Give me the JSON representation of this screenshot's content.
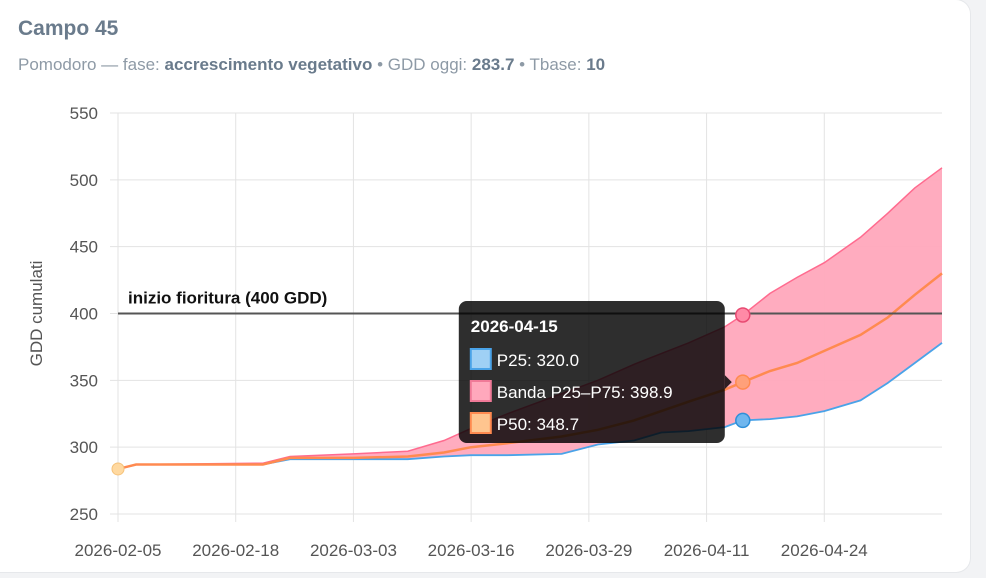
{
  "card": {
    "title": "Campo 45",
    "crop": "Pomodoro",
    "sep": " — ",
    "phase_label": "fase: ",
    "phase_value": "accrescimento vegetativo",
    "dot1": " • ",
    "gdd_label": "GDD oggi: ",
    "gdd_value": "283.7",
    "dot2": " • ",
    "tbase_label": "Tbase: ",
    "tbase_value": "10"
  },
  "colors": {
    "p25": "#4aa3e8",
    "p50": "#ff8a50",
    "band_fill": "#ffa8bc",
    "band_line": "#ff6b8f",
    "today_dot": "#ffd9a0",
    "threshold": "#555555"
  },
  "chart_data": {
    "type": "line",
    "ylabel": "GDD cumulati",
    "ylim": [
      250,
      550
    ],
    "yticks": [
      250,
      300,
      350,
      400,
      450,
      500,
      550
    ],
    "xlim": [
      "2026-02-05",
      "2026-05-07"
    ],
    "xticks": [
      "2026-02-05",
      "2026-02-18",
      "2026-03-03",
      "2026-03-16",
      "2026-03-29",
      "2026-04-11",
      "2026-04-24"
    ],
    "grid": true,
    "legend": "none",
    "today": {
      "x": "2026-02-05",
      "y": 283.7
    },
    "annotation": {
      "label": "inizio fioritura (400 GDD)",
      "y": 400
    },
    "series": [
      {
        "name": "P25",
        "x": [
          "2026-02-05",
          "2026-02-07",
          "2026-02-21",
          "2026-02-24",
          "2026-03-03",
          "2026-03-09",
          "2026-03-13",
          "2026-03-16",
          "2026-03-20",
          "2026-03-26",
          "2026-03-30",
          "2026-04-03",
          "2026-04-06",
          "2026-04-09",
          "2026-04-13",
          "2026-04-15",
          "2026-04-18",
          "2026-04-21",
          "2026-04-24",
          "2026-04-28",
          "2026-05-01",
          "2026-05-04",
          "2026-05-07"
        ],
        "values": [
          283.7,
          287,
          287,
          291,
          291,
          291,
          293,
          294,
          294,
          295,
          302,
          305,
          311,
          312,
          315,
          320,
          321,
          323,
          327,
          335,
          348,
          363,
          378
        ]
      },
      {
        "name": "P50",
        "x": [
          "2026-02-05",
          "2026-02-07",
          "2026-02-21",
          "2026-02-24",
          "2026-03-03",
          "2026-03-09",
          "2026-03-13",
          "2026-03-16",
          "2026-03-20",
          "2026-03-26",
          "2026-03-30",
          "2026-04-03",
          "2026-04-06",
          "2026-04-09",
          "2026-04-13",
          "2026-04-15",
          "2026-04-18",
          "2026-04-21",
          "2026-04-24",
          "2026-04-28",
          "2026-05-01",
          "2026-05-04",
          "2026-05-07"
        ],
        "values": [
          283.7,
          287,
          287,
          292,
          292,
          293,
          296,
          300,
          303,
          308,
          313,
          320,
          327,
          334,
          343,
          348.7,
          357,
          363,
          372,
          384,
          397,
          414,
          430
        ]
      },
      {
        "name": "Banda P25–P75",
        "x": [
          "2026-02-05",
          "2026-02-07",
          "2026-02-21",
          "2026-02-24",
          "2026-03-03",
          "2026-03-09",
          "2026-03-13",
          "2026-03-16",
          "2026-03-20",
          "2026-03-26",
          "2026-03-30",
          "2026-04-03",
          "2026-04-06",
          "2026-04-09",
          "2026-04-13",
          "2026-04-15",
          "2026-04-18",
          "2026-04-21",
          "2026-04-24",
          "2026-04-28",
          "2026-05-01",
          "2026-05-04",
          "2026-05-07"
        ],
        "values": [
          283.7,
          287,
          288,
          293,
          295,
          297,
          305,
          314,
          325,
          340,
          350,
          362,
          370,
          378,
          390,
          398.9,
          415,
          427,
          438,
          457,
          475,
          494,
          509
        ]
      }
    ],
    "tooltip": {
      "title": "2026-04-15",
      "items": [
        {
          "label": "P25: 320.0",
          "series": "P25"
        },
        {
          "label": "Banda P25–P75: 398.9",
          "series": "Banda P25–P75"
        },
        {
          "label": "P50: 348.7",
          "series": "P50"
        }
      ]
    }
  }
}
